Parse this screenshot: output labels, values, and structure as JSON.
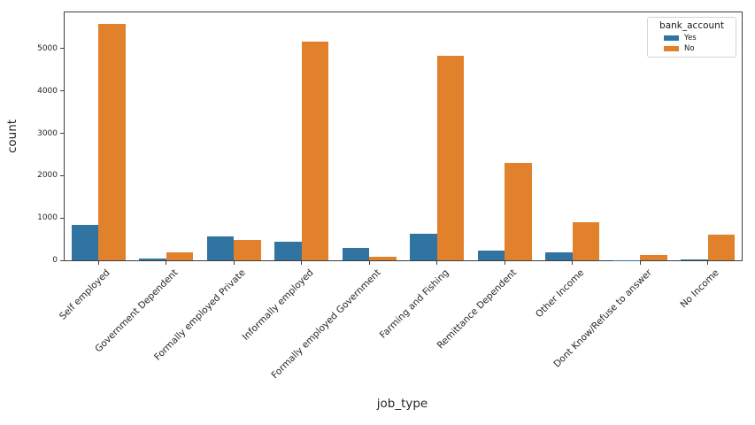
{
  "figure": {
    "background": "#ffffff"
  },
  "chart_data": {
    "type": "bar",
    "title": "",
    "xlabel": "job_type",
    "ylabel": "count",
    "categories": [
      "Self employed",
      "Government Dependent",
      "Formally employed Private",
      "Informally employed",
      "Formally employed Government",
      "Farming and Fishing",
      "Remittance Dependent",
      "Other Income",
      "Dont Know/Refuse to answer",
      "No Income"
    ],
    "series": [
      {
        "name": "Yes",
        "color": "#3274a1",
        "values": [
          842,
          52,
          571,
          434,
          298,
          621,
          229,
          181,
          9,
          11
        ]
      },
      {
        "name": "No",
        "color": "#e1812c",
        "values": [
          5588,
          195,
          484,
          5163,
          89,
          4820,
          2298,
          896,
          117,
          616
        ]
      }
    ],
    "legend": {
      "title": "bank_account",
      "entries": [
        "Yes",
        "No"
      ],
      "position": "upper-right"
    },
    "ylim": [
      0,
      5855
    ],
    "yticks": [
      0,
      1000,
      2000,
      3000,
      4000,
      5000
    ],
    "grid": false,
    "bar_orientation": "vertical"
  }
}
